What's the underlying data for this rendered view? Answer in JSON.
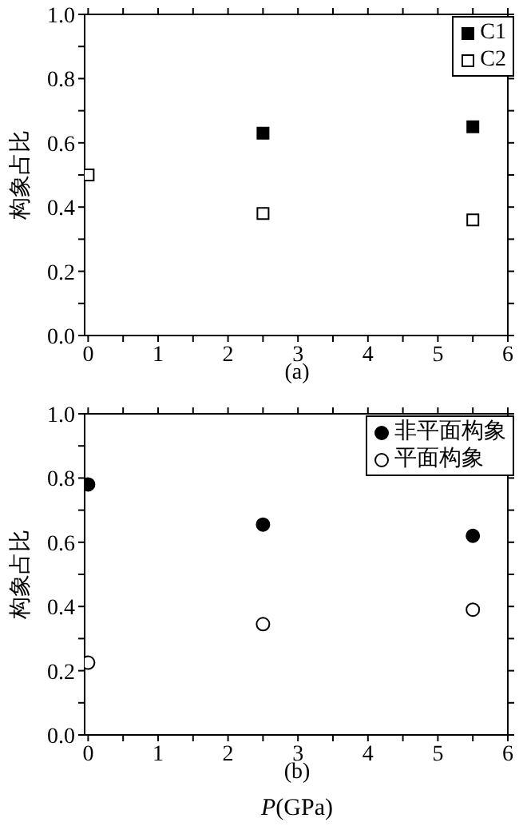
{
  "chart_data": [
    {
      "type": "scatter",
      "ylabel": "构象占比",
      "annotations": [
        "(a)"
      ],
      "x": [
        0,
        2.5,
        5.5
      ],
      "xlim": [
        -0.05,
        6
      ],
      "ylim": [
        0,
        1
      ],
      "xticks": [
        0,
        {
          "value": 0.5,
          "label": null
        },
        1,
        {
          "value": 1.5,
          "label": null
        },
        2,
        {
          "value": 2.5,
          "label": null
        },
        3,
        {
          "value": 3.5,
          "label": null
        },
        4,
        {
          "value": 4.5,
          "label": null
        },
        5,
        {
          "value": 5.5,
          "label": null
        },
        6
      ],
      "yticks": [
        {
          "value": 0,
          "label": "0.0"
        },
        {
          "value": 0.1,
          "label": null
        },
        {
          "value": 0.2,
          "label": "0.2"
        },
        {
          "value": 0.3,
          "label": null
        },
        {
          "value": 0.4,
          "label": "0.4"
        },
        {
          "value": 0.5,
          "label": null
        },
        {
          "value": 0.6,
          "label": "0.6"
        },
        {
          "value": 0.7,
          "label": null
        },
        {
          "value": 0.8,
          "label": "0.8"
        },
        {
          "value": 0.9,
          "label": null
        },
        {
          "value": 1,
          "label": "1.0"
        }
      ],
      "legend": "top right",
      "series": [
        {
          "name": "C1",
          "color": "#000000",
          "marker": "square",
          "values": [
            null,
            0.63,
            0.65
          ]
        },
        {
          "name": "C2",
          "color": "#ffffff",
          "marker": "square",
          "values": [
            0.5,
            0.38,
            0.36
          ]
        }
      ]
    },
    {
      "type": "scatter",
      "ylabel": "构象占比",
      "xlabel": "P(GPa)",
      "annotations": [
        "(b)"
      ],
      "x": [
        0,
        2.5,
        5.5
      ],
      "xlim": [
        -0.05,
        6
      ],
      "ylim": [
        0,
        1
      ],
      "xticks": [
        0,
        {
          "value": 0.5,
          "label": null
        },
        1,
        {
          "value": 1.5,
          "label": null
        },
        2,
        {
          "value": 2.5,
          "label": null
        },
        3,
        {
          "value": 3.5,
          "label": null
        },
        4,
        {
          "value": 4.5,
          "label": null
        },
        5,
        {
          "value": 5.5,
          "label": null
        },
        6
      ],
      "yticks": [
        {
          "value": 0,
          "label": "0.0"
        },
        {
          "value": 0.1,
          "label": null
        },
        {
          "value": 0.2,
          "label": "0.2"
        },
        {
          "value": 0.3,
          "label": null
        },
        {
          "value": 0.4,
          "label": "0.4"
        },
        {
          "value": 0.5,
          "label": null
        },
        {
          "value": 0.6,
          "label": "0.6"
        },
        {
          "value": 0.7,
          "label": null
        },
        {
          "value": 0.8,
          "label": "0.8"
        },
        {
          "value": 0.9,
          "label": null
        },
        {
          "value": 1,
          "label": "1.0"
        }
      ],
      "legend": "top right",
      "series": [
        {
          "name": "非平面构象",
          "color": "#000000",
          "marker": "circle",
          "values": [
            0.78,
            0.655,
            0.62
          ]
        },
        {
          "name": "平面构象",
          "color": "#ffffff",
          "marker": "circle",
          "values": [
            0.225,
            0.345,
            0.39
          ]
        }
      ]
    }
  ]
}
